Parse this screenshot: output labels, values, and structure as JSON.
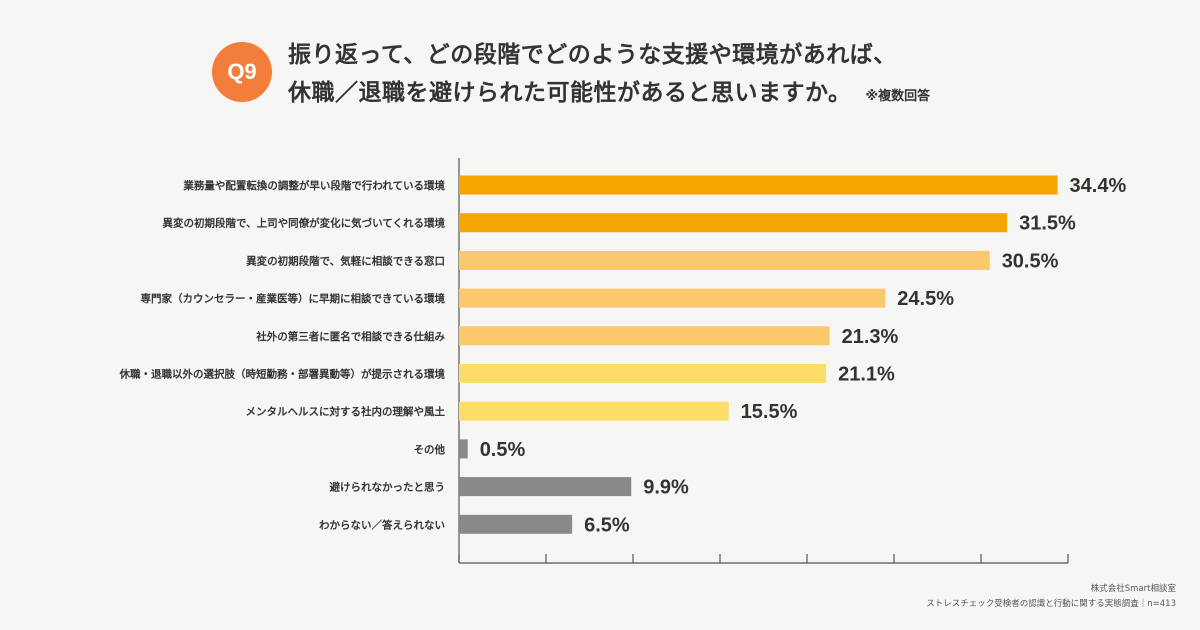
{
  "question": {
    "badge": "Q9",
    "line1": "振り返って、どの段階でどのような支援や環境があれば、",
    "line2": "休職／退職を避けられた可能性があると思いますか。",
    "note": "※複数回答"
  },
  "chart_data": {
    "type": "bar",
    "orientation": "horizontal",
    "categories": [
      "業務量や配置転換の調整が早い段階で行われている環境",
      "異変の初期段階で、上司や同僚が変化に気づいてくれる環境",
      "異変の初期段階で、気軽に相談できる窓口",
      "専門家（カウンセラー・産業医等）に早期に相談できている環境",
      "社外の第三者に匿名で相談できる仕組み",
      "休職・退職以外の選択肢（時短勤務・部署異動等）が提示される環境",
      "メンタルヘルスに対する社内の理解や風土",
      "その他",
      "避けられなかったと思う",
      "わからない／答えられない"
    ],
    "values": [
      34.4,
      31.5,
      30.5,
      24.5,
      21.3,
      21.1,
      15.5,
      0.5,
      9.9,
      6.5
    ],
    "value_labels": [
      "34.4%",
      "31.5%",
      "30.5%",
      "24.5%",
      "21.3%",
      "21.1%",
      "15.5%",
      "0.5%",
      "9.9%",
      "6.5%"
    ],
    "bar_colors": [
      "#f6a400",
      "#f6a400",
      "#fcc86e",
      "#fcc86e",
      "#fcc86e",
      "#fddd68",
      "#fddd68",
      "#8a8888",
      "#8a8888",
      "#8a8888"
    ],
    "xlim": [
      0,
      35
    ],
    "grid": false
  },
  "footer": {
    "line1": "株式会社Smart相談室",
    "line2": "ストレスチェック受検者の認識と行動に関する実態調査｜n=413"
  }
}
